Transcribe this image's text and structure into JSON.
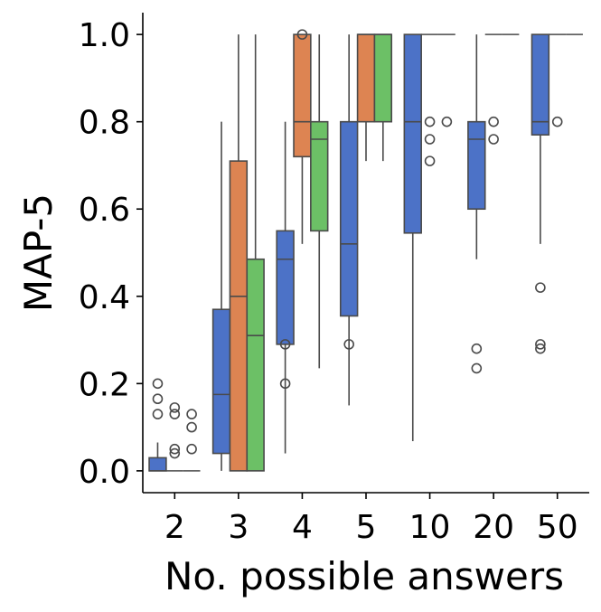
{
  "chart_data": {
    "type": "box",
    "title": "",
    "xlabel": "No. possible answers",
    "ylabel": "MAP-5",
    "categories": [
      "2",
      "3",
      "4",
      "5",
      "10",
      "20",
      "50"
    ],
    "ylim": [
      -0.05,
      1.05
    ],
    "yticks": [
      "0.0",
      "0.2",
      "0.4",
      "0.6",
      "0.8",
      "1.0"
    ],
    "grid": false,
    "legend": "none",
    "colors": [
      "#4c72c7",
      "#dd8452",
      "#6cc066"
    ],
    "series": [
      {
        "boxes": [
          {
            "category": "2",
            "min": 0.0,
            "q1": 0.0,
            "median": 0.0,
            "q3": 0.03,
            "max": 0.065,
            "outliers": [
              0.13,
              0.165,
              0.2
            ]
          },
          {
            "category": "3",
            "min": 0.0,
            "q1": 0.04,
            "median": 0.175,
            "q3": 0.37,
            "max": 0.8,
            "outliers": []
          },
          {
            "category": "4",
            "min": 0.04,
            "q1": 0.29,
            "median": 0.485,
            "q3": 0.55,
            "max": 0.8,
            "outliers": [
              0.2,
              0.29
            ]
          },
          {
            "category": "5",
            "min": 0.15,
            "q1": 0.355,
            "median": 0.52,
            "q3": 0.8,
            "max": 1.0,
            "outliers": [
              0.29
            ]
          },
          {
            "category": "10",
            "min": 0.068,
            "q1": 0.545,
            "median": 0.8,
            "q3": 1.0,
            "max": 1.0,
            "outliers": []
          },
          {
            "category": "20",
            "min": 0.485,
            "q1": 0.6,
            "median": 0.76,
            "q3": 0.8,
            "max": 1.0,
            "outliers": [
              0.235,
              0.28
            ]
          },
          {
            "category": "50",
            "min": 0.52,
            "q1": 0.77,
            "median": 0.8,
            "q3": 1.0,
            "max": 1.0,
            "outliers": [
              0.28,
              0.29,
              0.42
            ]
          }
        ]
      },
      {
        "boxes": [
          {
            "category": "2",
            "min": 0.0,
            "q1": 0.0,
            "median": 0.0,
            "q3": 0.0,
            "max": 0.0,
            "outliers": [
              0.04,
              0.05,
              0.13,
              0.145
            ]
          },
          {
            "category": "3",
            "min": 0.0,
            "q1": 0.0,
            "median": 0.4,
            "q3": 0.71,
            "max": 1.0,
            "outliers": []
          },
          {
            "category": "4",
            "min": 0.52,
            "q1": 0.72,
            "median": 0.8,
            "q3": 1.0,
            "max": 1.0,
            "outliers": [
              1.0
            ]
          },
          {
            "category": "5",
            "min": 0.71,
            "q1": 0.8,
            "median": 1.0,
            "q3": 1.0,
            "max": 1.0,
            "outliers": []
          },
          {
            "category": "10",
            "min": 1.0,
            "q1": 1.0,
            "median": 1.0,
            "q3": 1.0,
            "max": 1.0,
            "outliers": [
              0.71,
              0.76,
              0.8
            ]
          },
          {
            "category": "20",
            "min": 1.0,
            "q1": 1.0,
            "median": 1.0,
            "q3": 1.0,
            "max": 1.0,
            "outliers": [
              0.76,
              0.8
            ]
          },
          {
            "category": "50",
            "min": 1.0,
            "q1": 1.0,
            "median": 1.0,
            "q3": 1.0,
            "max": 1.0,
            "outliers": [
              0.8
            ]
          }
        ]
      },
      {
        "boxes": [
          {
            "category": "2",
            "min": 0.0,
            "q1": 0.0,
            "median": 0.0,
            "q3": 0.0,
            "max": 0.0,
            "outliers": [
              0.05,
              0.1,
              0.13
            ]
          },
          {
            "category": "3",
            "min": 0.0,
            "q1": 0.0,
            "median": 0.31,
            "q3": 0.485,
            "max": 1.0,
            "outliers": []
          },
          {
            "category": "4",
            "min": 0.235,
            "q1": 0.55,
            "median": 0.76,
            "q3": 0.8,
            "max": 1.0,
            "outliers": []
          },
          {
            "category": "5",
            "min": 0.71,
            "q1": 0.8,
            "median": 1.0,
            "q3": 1.0,
            "max": 1.0,
            "outliers": []
          },
          {
            "category": "10",
            "min": 1.0,
            "q1": 1.0,
            "median": 1.0,
            "q3": 1.0,
            "max": 1.0,
            "outliers": [
              0.8
            ]
          },
          {
            "category": "20",
            "min": 1.0,
            "q1": 1.0,
            "median": 1.0,
            "q3": 1.0,
            "max": 1.0,
            "outliers": []
          },
          {
            "category": "50",
            "min": 1.0,
            "q1": 1.0,
            "median": 1.0,
            "q3": 1.0,
            "max": 1.0,
            "outliers": []
          }
        ]
      }
    ]
  }
}
